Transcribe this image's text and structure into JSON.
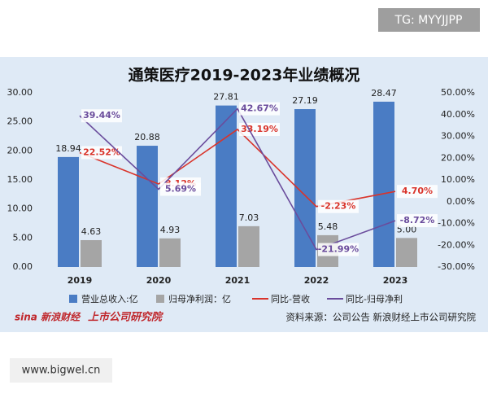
{
  "header": {
    "tag": "TG: MYYJJPP"
  },
  "chart_data": {
    "type": "bar-line",
    "title": "通策医疗2019-2023年业绩概况",
    "categories": [
      "2019",
      "2020",
      "2021",
      "2022",
      "2023"
    ],
    "series": [
      {
        "name": "营业总收入:亿",
        "type": "bar",
        "color": "#4a7cc4",
        "values": [
          18.94,
          20.88,
          27.81,
          27.19,
          28.47
        ],
        "value_labels": [
          "18.94",
          "20.88",
          "27.81",
          "27.19",
          "28.47"
        ]
      },
      {
        "name": "归母净利润：亿",
        "type": "bar",
        "color": "#a5a5a5",
        "values": [
          4.63,
          4.93,
          7.03,
          5.48,
          5.0
        ],
        "value_labels": [
          "4.63",
          "4.93",
          "7.03",
          "5.48",
          "5.00"
        ]
      },
      {
        "name": "同比-营收",
        "type": "line",
        "axis": "y2",
        "color": "#d9342b",
        "values": [
          22.52,
          8.12,
          33.19,
          -2.23,
          4.7
        ],
        "value_labels": [
          "22.52%",
          "8.12%",
          "33.19%",
          "-2.23%",
          "4.70%"
        ]
      },
      {
        "name": "同比-归母净利",
        "type": "line",
        "axis": "y2",
        "color": "#6a4c9c",
        "values": [
          39.44,
          5.69,
          42.67,
          -21.99,
          -8.72
        ],
        "value_labels": [
          "39.44%",
          "5.69%",
          "42.67%",
          "-21.99%",
          "-8.72%"
        ]
      }
    ],
    "ylim": [
      0,
      30
    ],
    "yticks": [
      {
        "value": 0,
        "label": "0.00"
      },
      {
        "value": 5,
        "label": "5.00"
      },
      {
        "value": 10,
        "label": "10.00"
      },
      {
        "value": 15,
        "label": "15.00"
      },
      {
        "value": 20,
        "label": "20.00"
      },
      {
        "value": 25,
        "label": "25.00"
      },
      {
        "value": 30,
        "label": "30.00"
      }
    ],
    "y2lim": [
      -30,
      50
    ],
    "y2ticks": [
      {
        "value": -30,
        "label": "-30.00%"
      },
      {
        "value": -20,
        "label": "-20.00%"
      },
      {
        "value": -10,
        "label": "-10.00%"
      },
      {
        "value": 0,
        "label": "0.00%"
      },
      {
        "value": 10,
        "label": "10.00%"
      },
      {
        "value": 20,
        "label": "20.00%"
      },
      {
        "value": 30,
        "label": "30.00%"
      },
      {
        "value": 40,
        "label": "40.00%"
      },
      {
        "value": 50,
        "label": "50.00%"
      }
    ],
    "grid": false
  },
  "footer": {
    "logo": "sina 新浪财经",
    "institute": "上市公司研究院",
    "source": "资料来源：公司公告 新浪财经上市公司研究院"
  },
  "watermark": "www.bigwel.cn"
}
